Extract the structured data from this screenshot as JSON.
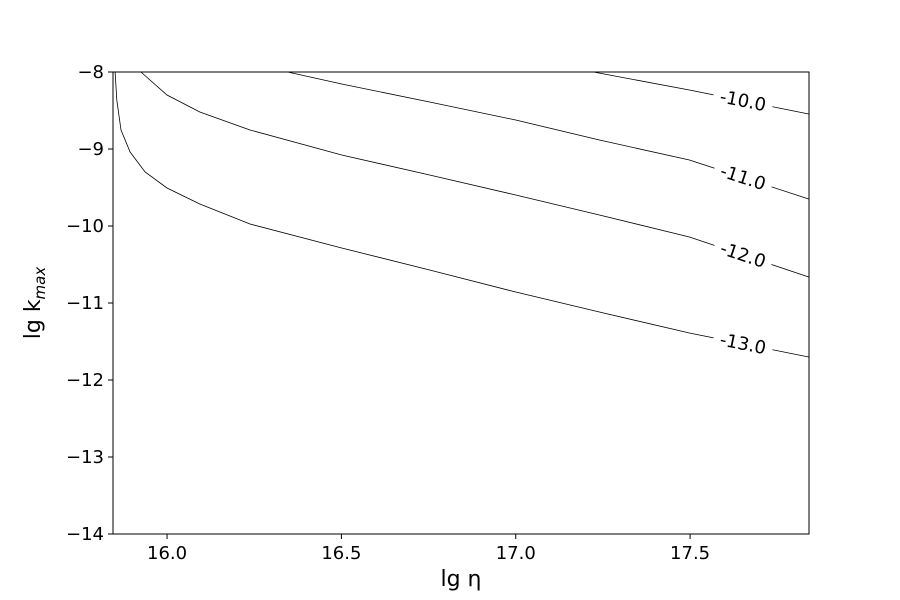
{
  "chart_data": {
    "type": "contour",
    "xlabel": "lg η",
    "ylabel": "lg k",
    "ylabel_subscript": "max",
    "xlim": [
      15.845,
      17.841
    ],
    "ylim": [
      -14,
      -8
    ],
    "xticks": [
      16.0,
      16.5,
      17.0,
      17.5
    ],
    "xtick_labels": [
      "16.0",
      "16.5",
      "17.0",
      "17.5"
    ],
    "yticks": [
      {
        "value": -14,
        "label": "−14"
      },
      {
        "value": -13,
        "label": "−13"
      },
      {
        "value": -12,
        "label": "−12"
      },
      {
        "value": -11,
        "label": "−11"
      },
      {
        "value": -10,
        "label": "−10"
      },
      {
        "value": -9,
        "label": "−9"
      },
      {
        "value": -8,
        "label": "−8"
      }
    ],
    "color": "#000000",
    "series": [
      {
        "level": -10,
        "label": "-10.0",
        "x": [
          17.223,
          17.498,
          17.84
        ],
        "y": [
          -8.0,
          -8.234,
          -8.545
        ]
      },
      {
        "level": -11,
        "label": "-11.0",
        "x": [
          16.346,
          16.501,
          16.753,
          17.0,
          17.24,
          17.498,
          17.84
        ],
        "y": [
          -8.0,
          -8.156,
          -8.39,
          -8.623,
          -8.883,
          -9.143,
          -9.649
        ]
      },
      {
        "level": -12,
        "label": "-12.0",
        "x": [
          15.925,
          16.0,
          16.094,
          16.238,
          16.501,
          16.753,
          17.0,
          17.24,
          17.498,
          17.84
        ],
        "y": [
          -8.0,
          -8.299,
          -8.519,
          -8.753,
          -9.078,
          -9.338,
          -9.597,
          -9.857,
          -10.143,
          -10.662
        ]
      },
      {
        "level": -13,
        "label": "-13.0",
        "x": [
          15.851,
          15.856,
          15.868,
          15.894,
          15.937,
          16.0,
          16.094,
          16.238,
          16.501,
          16.753,
          17.0,
          17.24,
          17.498,
          17.84
        ],
        "y": [
          -8.0,
          -8.364,
          -8.753,
          -9.039,
          -9.299,
          -9.506,
          -9.714,
          -9.974,
          -10.286,
          -10.571,
          -10.857,
          -11.117,
          -11.39,
          -11.701
        ]
      }
    ]
  }
}
